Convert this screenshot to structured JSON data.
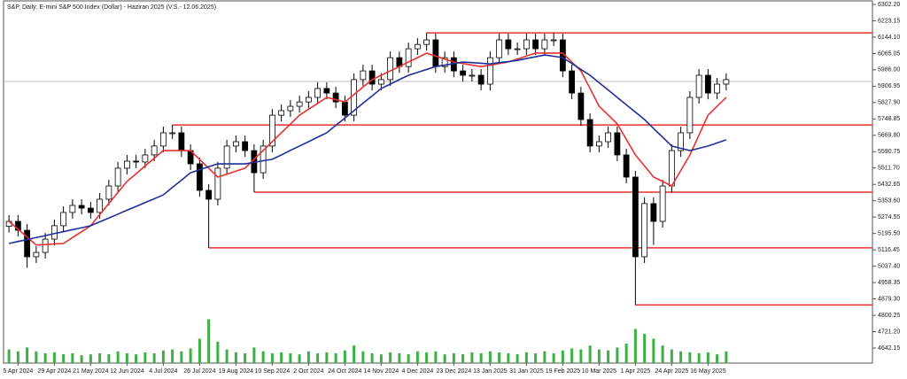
{
  "chart_data": {
    "type": "candlestick",
    "title": "S&P, Daily:  E-mini S&P 500 Index (Dollar) -  Haziran 2025 (V.S.- 12.06.2025)",
    "categories": [
      null,
      "5 Apr 2024",
      null,
      null,
      null,
      "29 Apr 2024",
      null,
      null,
      null,
      "21 May 2024",
      null,
      null,
      null,
      "12 Jun 2024",
      null,
      null,
      null,
      "4 Jul 2024",
      null,
      null,
      null,
      "26 Jul 2024",
      null,
      null,
      null,
      "19 Aug 2024",
      null,
      null,
      null,
      "10 Sep 2024",
      null,
      null,
      null,
      "2 Oct 2024",
      null,
      null,
      null,
      "24 Oct 2024",
      null,
      null,
      null,
      "14 Nov 2024",
      null,
      null,
      null,
      "4 Dec 2024",
      null,
      null,
      null,
      "23 Dec 2024",
      null,
      null,
      null,
      "13 Jan 2025",
      null,
      null,
      null,
      "31 Jan 2025",
      null,
      null,
      null,
      "19 Feb 2025",
      null,
      null,
      null,
      "10 Mar 2025",
      null,
      null,
      null,
      "1 Apr 2025",
      null,
      null,
      null,
      "24 Apr 2025",
      null,
      null,
      null,
      "16 May 2025",
      null,
      null
    ],
    "open": [
      5230,
      5254,
      5211,
      5083,
      5104,
      5168,
      5233,
      5297,
      5331,
      5318,
      5297,
      5361,
      5425,
      5511,
      5545,
      5541,
      5575,
      5618,
      5682,
      5682,
      5596,
      5532,
      5404,
      5361,
      5511,
      5618,
      5639,
      5596,
      5489,
      5618,
      5767,
      5789,
      5810,
      5831,
      5853,
      5896,
      5874,
      5831,
      5767,
      5939,
      5981,
      5917,
      5939,
      6045,
      6002,
      6088,
      6109,
      6131,
      6002,
      6045,
      5981,
      5960,
      5960,
      5917,
      6045,
      6131,
      6088,
      6088,
      6131,
      6088,
      6131,
      6131,
      5981,
      5874,
      5746,
      5618,
      5639,
      5682,
      5575,
      5468,
      5083,
      5340,
      5254,
      5425,
      5596,
      5682,
      5853,
      5960,
      5874,
      5917
    ],
    "high": [
      5284,
      5284,
      5241,
      5134,
      5198,
      5263,
      5327,
      5361,
      5361,
      5348,
      5391,
      5455,
      5541,
      5575,
      5575,
      5605,
      5648,
      5712,
      5720,
      5712,
      5626,
      5562,
      5434,
      5541,
      5648,
      5669,
      5669,
      5626,
      5648,
      5797,
      5819,
      5840,
      5861,
      5883,
      5926,
      5926,
      5904,
      5861,
      5969,
      6011,
      6011,
      5969,
      6075,
      6075,
      6118,
      6139,
      6165,
      6161,
      6075,
      6075,
      6011,
      5990,
      5990,
      6075,
      6161,
      6161,
      6118,
      6161,
      6161,
      6161,
      6165,
      6161,
      6011,
      5904,
      5776,
      5669,
      5712,
      5712,
      5605,
      5498,
      5370,
      5370,
      5455,
      5626,
      5712,
      5883,
      5990,
      5990,
      5947,
      5969
    ],
    "low": [
      5200,
      5181,
      5030,
      5053,
      5074,
      5138,
      5203,
      5267,
      5288,
      5267,
      5267,
      5331,
      5395,
      5481,
      5511,
      5511,
      5545,
      5588,
      5652,
      5566,
      5502,
      5374,
      5126,
      5331,
      5481,
      5588,
      5566,
      5395,
      5459,
      5588,
      5737,
      5759,
      5780,
      5801,
      5823,
      5844,
      5801,
      5737,
      5737,
      5909,
      5887,
      5887,
      5909,
      5972,
      5972,
      6058,
      6079,
      5972,
      5972,
      5951,
      5930,
      5930,
      5887,
      5887,
      6015,
      6058,
      6058,
      6058,
      6058,
      6058,
      6101,
      5951,
      5844,
      5716,
      5588,
      5588,
      5609,
      5545,
      5438,
      4850,
      5053,
      5140,
      5224,
      5395,
      5566,
      5652,
      5823,
      5844,
      5844,
      5887
    ],
    "close": [
      5254,
      5211,
      5083,
      5104,
      5168,
      5233,
      5297,
      5331,
      5318,
      5297,
      5361,
      5425,
      5511,
      5545,
      5541,
      5575,
      5618,
      5682,
      5682,
      5596,
      5532,
      5404,
      5361,
      5511,
      5618,
      5639,
      5596,
      5489,
      5618,
      5767,
      5789,
      5810,
      5831,
      5853,
      5896,
      5874,
      5831,
      5767,
      5939,
      5981,
      5917,
      5939,
      6045,
      6002,
      6088,
      6109,
      6131,
      6002,
      6045,
      5981,
      5960,
      5960,
      5917,
      6045,
      6131,
      6088,
      6088,
      6131,
      6088,
      6131,
      6131,
      5981,
      5874,
      5746,
      5618,
      5639,
      5682,
      5575,
      5468,
      5083,
      5340,
      5254,
      5425,
      5596,
      5682,
      5853,
      5960,
      5874,
      5917,
      5939
    ],
    "series": [
      {
        "name": "MA fast",
        "color": "#e8312f",
        "values": [
          5254,
          5216,
          5178,
          5140,
          5142,
          5145,
          5147,
          5176,
          5204,
          5233,
          5287,
          5340,
          5394,
          5447,
          5484,
          5522,
          5559,
          5596,
          5596,
          5596,
          5596,
          5553,
          5511,
          5468,
          5482,
          5497,
          5511,
          5554,
          5596,
          5639,
          5682,
          5724,
          5767,
          5796,
          5824,
          5853,
          5842,
          5831,
          5867,
          5903,
          5939,
          5960,
          5981,
          6002,
          6024,
          6045,
          6067,
          6053,
          6038,
          6024,
          6017,
          6009,
          6002,
          6009,
          6017,
          6024,
          6038,
          6053,
          6067,
          6067,
          6067,
          6067,
          6024,
          5981,
          5896,
          5810,
          5768,
          5725,
          5650,
          5575,
          5522,
          5468,
          5447,
          5425,
          5500,
          5575,
          5671,
          5767,
          5810,
          5853
        ]
      },
      {
        "name": "MA slow",
        "color": "#1f2f9a",
        "values": [
          5147,
          5157,
          5166,
          5176,
          5185,
          5195,
          5204,
          5214,
          5223,
          5233,
          5252,
          5270,
          5289,
          5308,
          5326,
          5345,
          5363,
          5382,
          5418,
          5453,
          5489,
          5503,
          5518,
          5532,
          5532,
          5532,
          5532,
          5539,
          5547,
          5554,
          5575,
          5597,
          5618,
          5639,
          5661,
          5682,
          5718,
          5753,
          5789,
          5825,
          5860,
          5896,
          5917,
          5939,
          5960,
          5974,
          5988,
          6002,
          6009,
          6017,
          6024,
          6021,
          6018,
          6015,
          6021,
          6026,
          6032,
          6041,
          6049,
          6058,
          6052,
          6045,
          6017,
          5988,
          5960,
          5924,
          5889,
          5853,
          5817,
          5782,
          5746,
          5703,
          5661,
          5618,
          5607,
          5596,
          5607,
          5618,
          5633,
          5648
        ]
      }
    ],
    "volume": [
      14,
      12,
      16,
      12,
      10,
      11,
      9,
      10,
      8,
      9,
      10,
      9,
      12,
      10,
      9,
      11,
      10,
      13,
      14,
      12,
      15,
      25,
      45,
      22,
      14,
      11,
      10,
      16,
      12,
      10,
      11,
      10,
      9,
      12,
      10,
      11,
      10,
      13,
      18,
      12,
      10,
      9,
      11,
      10,
      9,
      12,
      11,
      12,
      9,
      10,
      9,
      11,
      10,
      12,
      11,
      10,
      9,
      11,
      10,
      12,
      10,
      13,
      15,
      14,
      18,
      14,
      13,
      16,
      20,
      35,
      30,
      25,
      18,
      14,
      12,
      11,
      10,
      11,
      9,
      12
    ],
    "volume_color": "#3cb043",
    "vlim": [
      0,
      50
    ],
    "levels": [
      {
        "value": 6165,
        "from": 46
      },
      {
        "value": 5720,
        "from": 18
      },
      {
        "value": 5395,
        "from": 27
      },
      {
        "value": 5126,
        "from": 22
      },
      {
        "value": 4850,
        "from": 69
      }
    ],
    "level_color": "#e8312f",
    "current_price": 5930,
    "ylim": [
      4569.4,
      6323.6
    ],
    "yticks": [
      {
        "value": 6302.2,
        "label": "6302.20"
      },
      6223.15,
      {
        "value": 6144.1,
        "label": "6144.10"
      },
      6065.05,
      {
        "value": 5986,
        "label": "5986.00"
      },
      5906.95,
      {
        "value": 5827.9,
        "label": "5827.90"
      },
      5748.85,
      {
        "value": 5669.8,
        "label": "5669.80"
      },
      5590.75,
      {
        "value": 5511.7,
        "label": "5511.70"
      },
      5432.65,
      {
        "value": 5353.6,
        "label": "5353.60"
      },
      5274.55,
      {
        "value": 5195.5,
        "label": "5195.50"
      },
      5116.45,
      {
        "value": 5037.4,
        "label": "5037.40"
      },
      4958.35,
      {
        "value": 4879.3,
        "label": "4879.30"
      },
      4800.25,
      {
        "value": 4721.2,
        "label": "4721.20"
      },
      4642.15
    ]
  }
}
